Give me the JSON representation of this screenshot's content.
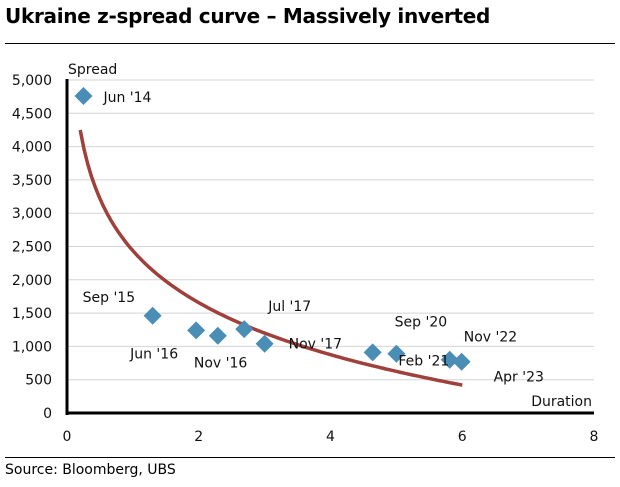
{
  "title": "Ukraine z-spread curve – Massively inverted",
  "source": "Source:  Bloomberg, UBS",
  "chart_data": {
    "type": "scatter",
    "title": "Ukraine z-spread curve – Massively inverted",
    "xlabel": "Duration",
    "ylabel": "Spread",
    "xlim": [
      0,
      8
    ],
    "ylim": [
      0,
      5000
    ],
    "xticks": [
      "0",
      "2",
      "4",
      "6",
      "8"
    ],
    "xtick_values": [
      0,
      2,
      4,
      6,
      8
    ],
    "yticks": [
      "0",
      "500",
      "1,000",
      "1,500",
      "2,000",
      "2,500",
      "3,000",
      "3,500",
      "4,000",
      "4,500",
      "5,000"
    ],
    "ytick_values": [
      0,
      500,
      1000,
      1500,
      2000,
      2500,
      3000,
      3500,
      4000,
      4500,
      5000
    ],
    "grid": "horizontal",
    "marker_color": "#4a8db5",
    "curve_color": "#a0403a",
    "points": [
      {
        "label": "Jun '14",
        "x": 0.25,
        "y": 4760
      },
      {
        "label": "Sep '15",
        "x": 1.3,
        "y": 1460
      },
      {
        "label": "Jun '16",
        "x": 1.96,
        "y": 1240
      },
      {
        "label": "Nov '16",
        "x": 2.29,
        "y": 1160
      },
      {
        "label": "Jul '17",
        "x": 2.69,
        "y": 1260
      },
      {
        "label": "Nov '17",
        "x": 3.0,
        "y": 1040
      },
      {
        "label": "Sep '20",
        "x": 4.64,
        "y": 910
      },
      {
        "label": "Feb '21",
        "x": 5.0,
        "y": 890
      },
      {
        "label": "Nov '22",
        "x": 5.81,
        "y": 800
      },
      {
        "label": "Apr '23",
        "x": 5.99,
        "y": 770
      }
    ],
    "fit_curve": {
      "type": "logarithmic",
      "a": 2437,
      "b": 1126,
      "x_range": [
        0.2,
        6.0
      ],
      "formula": "y = a - b*ln(x)"
    }
  }
}
